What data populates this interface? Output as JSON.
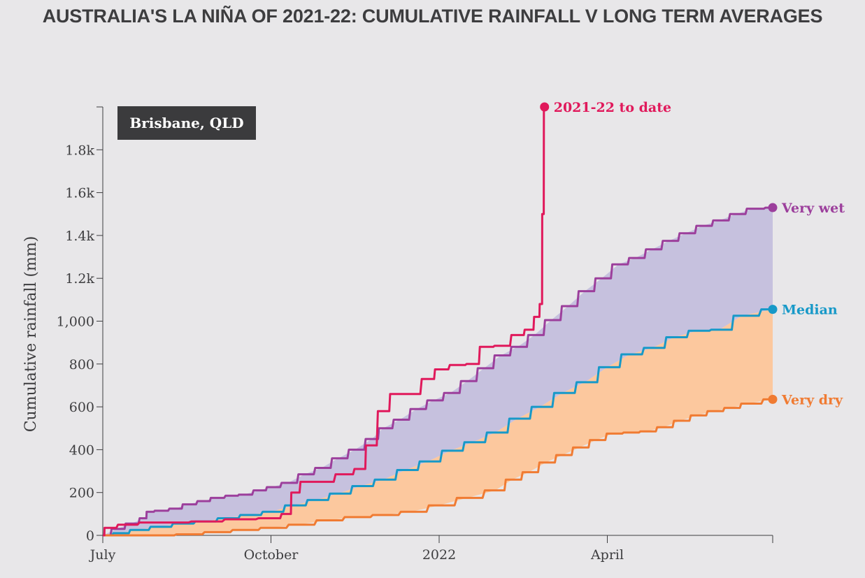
{
  "title": "AUSTRALIA'S LA NIÑA OF 2021-22: CUMULATIVE RAINFALL V LONG TERM AVERAGES",
  "location": "Brisbane, QLD",
  "chart_data": {
    "type": "line",
    "title": "AUSTRALIA'S LA NIÑA OF 2021-22: CUMULATIVE RAINFALL V LONG TERM AVERAGES",
    "xlabel": "",
    "ylabel": "Cumulative rainfall (mm)",
    "x_unit": "months since 1 July",
    "xlim": [
      0,
      11.95
    ],
    "ylim": [
      0,
      2000
    ],
    "x_ticks": [
      {
        "label": "July",
        "value": 0
      },
      {
        "label": "October",
        "value": 3
      },
      {
        "label": "2022",
        "value": 6
      },
      {
        "label": "April",
        "value": 9
      }
    ],
    "y_ticks": [
      {
        "label": "0",
        "value": 0
      },
      {
        "label": "200",
        "value": 200
      },
      {
        "label": "400",
        "value": 400
      },
      {
        "label": "600",
        "value": 600
      },
      {
        "label": "800",
        "value": 800
      },
      {
        "label": "1,000",
        "value": 1000
      },
      {
        "label": "1.2k",
        "value": 1200
      },
      {
        "label": "1.4k",
        "value": 1400
      },
      {
        "label": "1.6k",
        "value": 1600
      },
      {
        "label": "1.8k",
        "value": 1800
      }
    ],
    "grid": false,
    "series": [
      {
        "name": "Very wet",
        "color": "#9c3f9c",
        "end_marker": true,
        "x": [
          0,
          0.25,
          0.5,
          0.75,
          0.8,
          1.0,
          1.3,
          1.5,
          1.8,
          2.0,
          2.3,
          2.5,
          2.8,
          3.0,
          3.3,
          3.6,
          3.9,
          4.2,
          4.5,
          4.8,
          5.0,
          5.3,
          5.6,
          5.9,
          6.2,
          6.5,
          6.8,
          7.1,
          7.4,
          7.7,
          8.0,
          8.3,
          8.6,
          8.9,
          9.2,
          9.5,
          9.8,
          10.1,
          10.4,
          10.7,
          11.0,
          11.3,
          11.6,
          11.95
        ],
        "values": [
          0,
          30,
          55,
          80,
          110,
          115,
          125,
          145,
          160,
          175,
          185,
          190,
          210,
          225,
          245,
          285,
          315,
          360,
          400,
          450,
          500,
          540,
          590,
          630,
          665,
          720,
          780,
          840,
          880,
          935,
          1005,
          1070,
          1140,
          1200,
          1265,
          1295,
          1335,
          1375,
          1410,
          1445,
          1470,
          1500,
          1525,
          1530
        ]
      },
      {
        "name": "Median",
        "color": "#1799c8",
        "end_marker": true,
        "x": [
          0,
          0.3,
          0.6,
          1.0,
          1.4,
          1.8,
          2.2,
          2.6,
          3.0,
          3.4,
          3.8,
          4.2,
          4.6,
          5.0,
          5.4,
          5.8,
          6.2,
          6.6,
          7.0,
          7.4,
          7.8,
          8.2,
          8.6,
          9.0,
          9.4,
          9.8,
          10.2,
          10.6,
          11.0,
          11.4,
          11.95
        ],
        "values": [
          0,
          10,
          25,
          40,
          55,
          65,
          80,
          95,
          110,
          140,
          165,
          195,
          230,
          260,
          305,
          345,
          395,
          435,
          480,
          545,
          600,
          665,
          715,
          785,
          845,
          875,
          925,
          955,
          960,
          1025,
          1055
        ]
      },
      {
        "name": "Very dry",
        "color": "#f07b32",
        "end_marker": true,
        "x": [
          0,
          0.5,
          1.0,
          1.5,
          2.0,
          2.5,
          3.0,
          3.5,
          4.0,
          4.5,
          5.0,
          5.5,
          6.0,
          6.5,
          7.0,
          7.3,
          7.6,
          7.9,
          8.2,
          8.5,
          8.8,
          9.1,
          9.4,
          9.7,
          10.0,
          10.3,
          10.6,
          10.9,
          11.2,
          11.5,
          11.95
        ],
        "values": [
          0,
          0,
          0,
          5,
          15,
          25,
          35,
          50,
          70,
          85,
          95,
          110,
          140,
          175,
          210,
          260,
          295,
          340,
          375,
          410,
          445,
          475,
          480,
          485,
          505,
          535,
          560,
          580,
          595,
          615,
          635
        ]
      },
      {
        "name": "2021-22 to date",
        "color": "#e0195b",
        "end_marker": true,
        "x": [
          0,
          0.05,
          0.4,
          0.8,
          1.2,
          1.8,
          2.4,
          3.0,
          3.3,
          3.4,
          3.6,
          3.9,
          4.3,
          4.6,
          4.75,
          5.0,
          5.2,
          5.5,
          5.8,
          6.0,
          6.3,
          6.6,
          6.8,
          7.1,
          7.4,
          7.6,
          7.75,
          7.82,
          7.85,
          7.88
        ],
        "values": [
          0,
          35,
          50,
          60,
          60,
          65,
          75,
          80,
          100,
          200,
          250,
          250,
          285,
          310,
          420,
          580,
          660,
          660,
          730,
          775,
          795,
          800,
          880,
          885,
          935,
          960,
          1020,
          1080,
          1500,
          2000
        ]
      }
    ],
    "bands": [
      {
        "between": [
          "Very wet",
          "Median"
        ],
        "color": "#c6c1de"
      },
      {
        "between": [
          "Median",
          "Very dry"
        ],
        "color": "#fcc89e"
      }
    ]
  }
}
